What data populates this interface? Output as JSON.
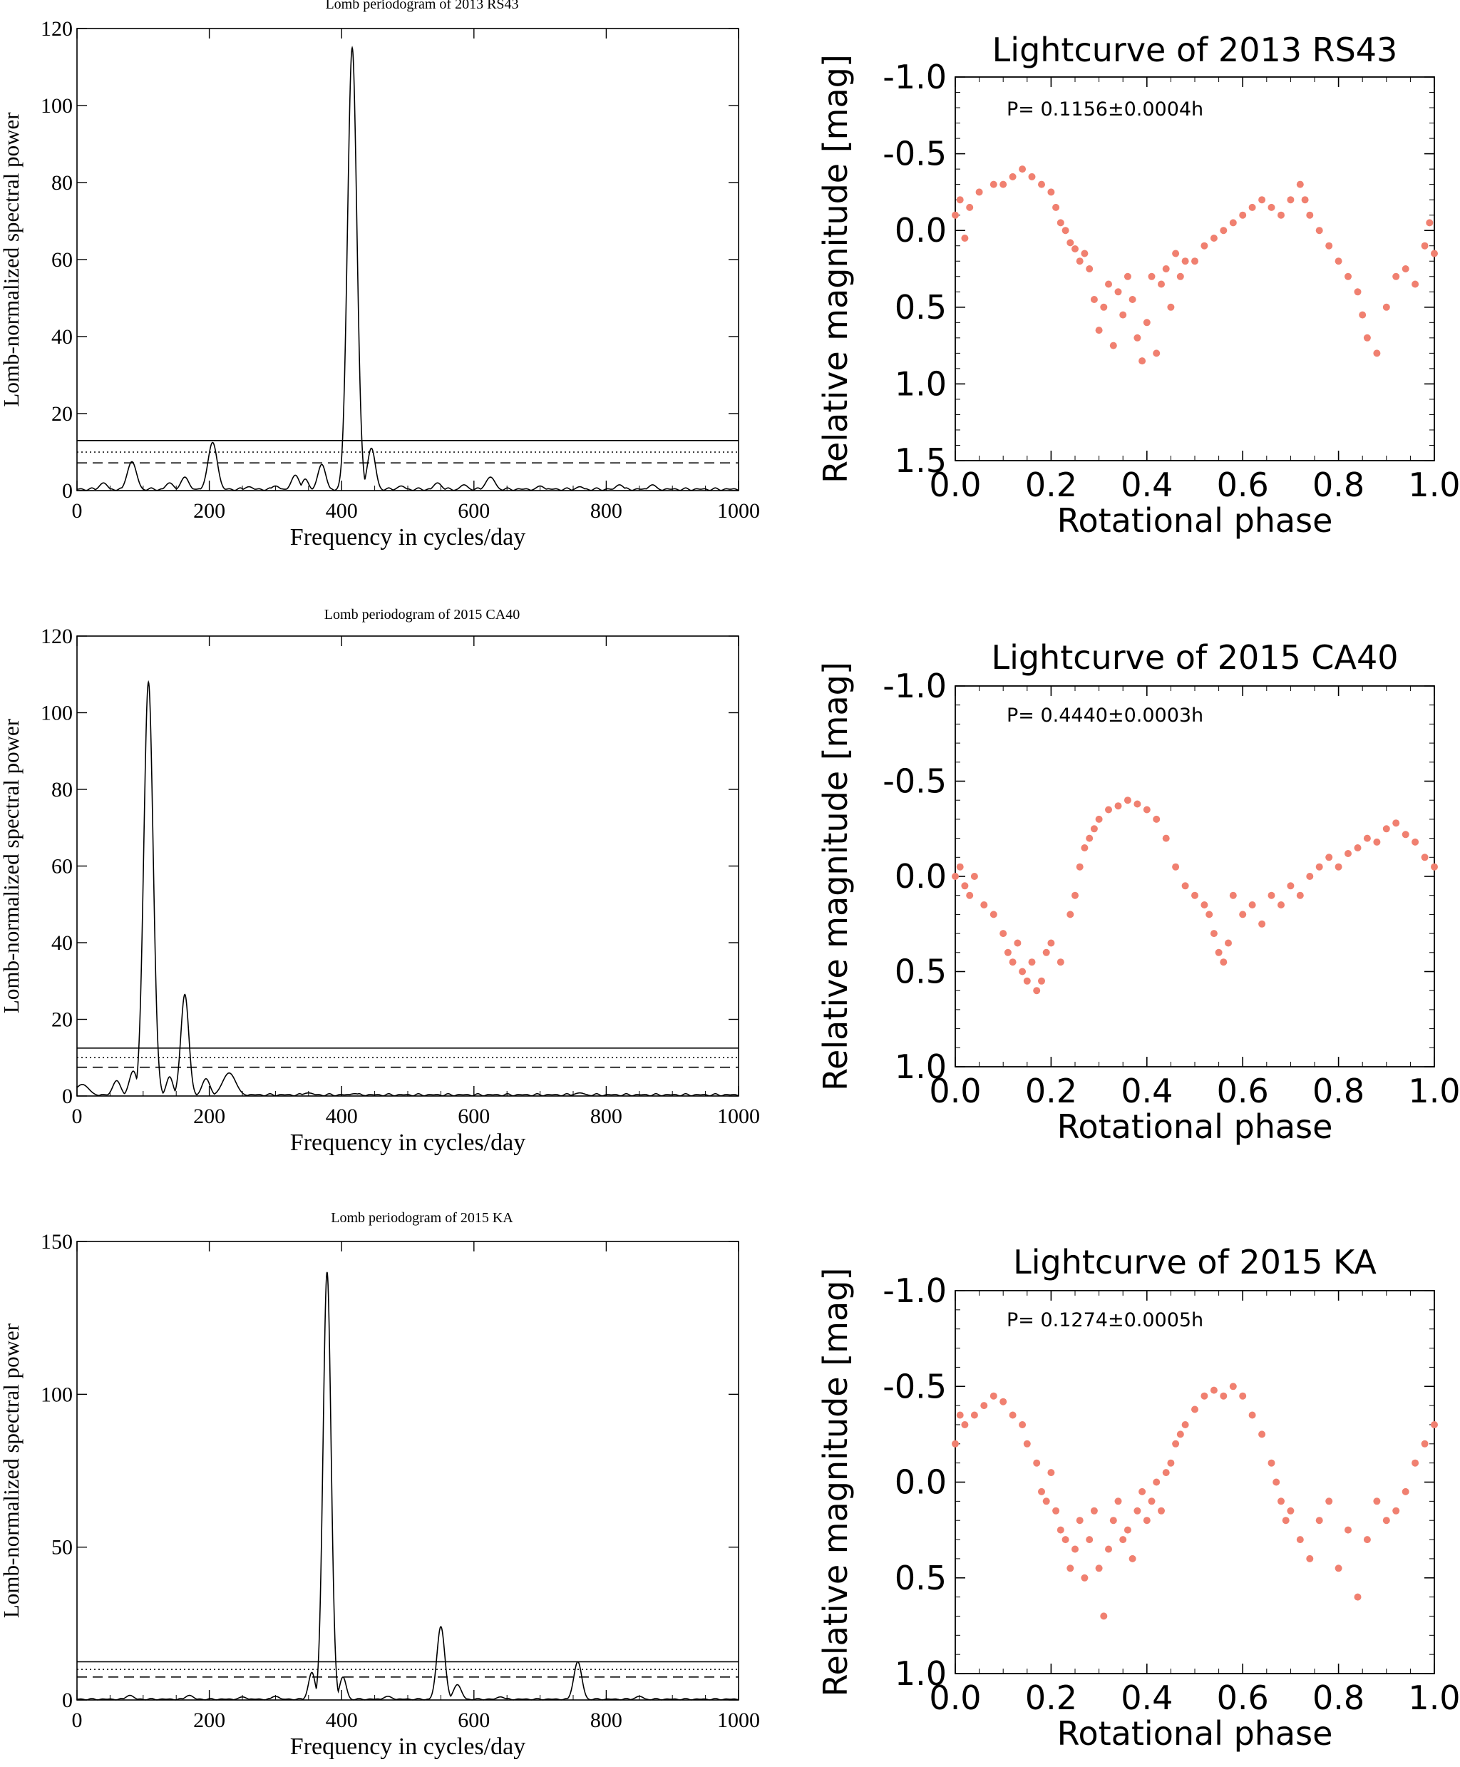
{
  "chart_data": [
    {
      "type": "line",
      "title": "Lomb periodogram of 2013 RS43",
      "xlabel": "Frequency in cycles/day",
      "ylabel": "Lomb-normalized spectral power",
      "xlim": [
        0,
        1000
      ],
      "ylim": [
        0,
        120
      ],
      "xticks": [
        "0",
        "200",
        "400",
        "600",
        "800",
        "1000"
      ],
      "yticks": [
        "0",
        "20",
        "40",
        "60",
        "80",
        "100",
        "120"
      ],
      "thresholds": [
        {
          "style": "solid",
          "value": 13.0
        },
        {
          "style": "dotted",
          "value": 10.0
        },
        {
          "style": "dashed",
          "value": 7.2
        }
      ],
      "baseline": 0.7,
      "peaks": [
        {
          "x": 40,
          "y": 2.0,
          "w": 6
        },
        {
          "x": 83,
          "y": 7.5,
          "w": 7
        },
        {
          "x": 140,
          "y": 2.0,
          "w": 6
        },
        {
          "x": 163,
          "y": 3.5,
          "w": 6
        },
        {
          "x": 205,
          "y": 12.5,
          "w": 7
        },
        {
          "x": 260,
          "y": 1.0,
          "w": 6
        },
        {
          "x": 300,
          "y": 1.2,
          "w": 6
        },
        {
          "x": 330,
          "y": 4.0,
          "w": 6
        },
        {
          "x": 345,
          "y": 3.0,
          "w": 5
        },
        {
          "x": 370,
          "y": 6.8,
          "w": 6
        },
        {
          "x": 416,
          "y": 115.0,
          "w": 7
        },
        {
          "x": 445,
          "y": 11.0,
          "w": 6
        },
        {
          "x": 490,
          "y": 1.2,
          "w": 6
        },
        {
          "x": 545,
          "y": 2.0,
          "w": 6
        },
        {
          "x": 585,
          "y": 1.5,
          "w": 6
        },
        {
          "x": 625,
          "y": 3.5,
          "w": 7
        },
        {
          "x": 700,
          "y": 1.2,
          "w": 6
        },
        {
          "x": 760,
          "y": 1.0,
          "w": 6
        },
        {
          "x": 820,
          "y": 1.5,
          "w": 6
        },
        {
          "x": 870,
          "y": 1.5,
          "w": 6
        }
      ]
    },
    {
      "type": "scatter",
      "title": "Lightcurve of 2013 RS43",
      "annotation": "P= 0.1156±0.0004h",
      "xlabel": "Rotational phase",
      "ylabel": "Relative magnitude [mag]",
      "xlim": [
        0.0,
        1.0
      ],
      "ylim": [
        -1.0,
        1.5
      ],
      "y_inverted": true,
      "xticks": [
        "0.0",
        "0.2",
        "0.4",
        "0.6",
        "0.8",
        "1.0"
      ],
      "yticks": [
        "-1.0",
        "-0.5",
        "0.0",
        "0.5",
        "1.0",
        "1.5"
      ],
      "marker_color": "#f08070",
      "points": [
        [
          0.0,
          -0.1
        ],
        [
          0.01,
          -0.2
        ],
        [
          0.02,
          0.05
        ],
        [
          0.03,
          -0.15
        ],
        [
          0.05,
          -0.25
        ],
        [
          0.08,
          -0.3
        ],
        [
          0.1,
          -0.3
        ],
        [
          0.12,
          -0.35
        ],
        [
          0.14,
          -0.4
        ],
        [
          0.16,
          -0.35
        ],
        [
          0.18,
          -0.3
        ],
        [
          0.2,
          -0.25
        ],
        [
          0.21,
          -0.15
        ],
        [
          0.22,
          -0.05
        ],
        [
          0.23,
          0.0
        ],
        [
          0.24,
          0.08
        ],
        [
          0.25,
          0.12
        ],
        [
          0.26,
          0.2
        ],
        [
          0.27,
          0.15
        ],
        [
          0.28,
          0.25
        ],
        [
          0.29,
          0.45
        ],
        [
          0.3,
          0.65
        ],
        [
          0.31,
          0.5
        ],
        [
          0.32,
          0.35
        ],
        [
          0.33,
          0.75
        ],
        [
          0.34,
          0.4
        ],
        [
          0.35,
          0.55
        ],
        [
          0.36,
          0.3
        ],
        [
          0.37,
          0.45
        ],
        [
          0.38,
          0.7
        ],
        [
          0.39,
          0.85
        ],
        [
          0.4,
          0.6
        ],
        [
          0.41,
          0.3
        ],
        [
          0.42,
          0.8
        ],
        [
          0.43,
          0.35
        ],
        [
          0.44,
          0.25
        ],
        [
          0.45,
          0.5
        ],
        [
          0.46,
          0.15
        ],
        [
          0.47,
          0.3
        ],
        [
          0.48,
          0.2
        ],
        [
          0.5,
          0.2
        ],
        [
          0.52,
          0.1
        ],
        [
          0.54,
          0.05
        ],
        [
          0.56,
          0.0
        ],
        [
          0.58,
          -0.05
        ],
        [
          0.6,
          -0.1
        ],
        [
          0.62,
          -0.15
        ],
        [
          0.64,
          -0.2
        ],
        [
          0.66,
          -0.15
        ],
        [
          0.68,
          -0.1
        ],
        [
          0.7,
          -0.2
        ],
        [
          0.72,
          -0.3
        ],
        [
          0.73,
          -0.2
        ],
        [
          0.74,
          -0.1
        ],
        [
          0.76,
          0.0
        ],
        [
          0.78,
          0.1
        ],
        [
          0.8,
          0.2
        ],
        [
          0.82,
          0.3
        ],
        [
          0.84,
          0.4
        ],
        [
          0.85,
          0.55
        ],
        [
          0.86,
          0.7
        ],
        [
          0.88,
          0.8
        ],
        [
          0.9,
          0.5
        ],
        [
          0.92,
          0.3
        ],
        [
          0.94,
          0.25
        ],
        [
          0.96,
          0.35
        ],
        [
          0.98,
          0.1
        ],
        [
          0.99,
          -0.05
        ],
        [
          1.0,
          0.15
        ]
      ]
    },
    {
      "type": "line",
      "title": "Lomb periodogram of 2015 CA40",
      "xlabel": "Frequency in cycles/day",
      "ylabel": "Lomb-normalized spectral power",
      "xlim": [
        0,
        1000
      ],
      "ylim": [
        0,
        120
      ],
      "xticks": [
        "0",
        "200",
        "400",
        "600",
        "800",
        "1000"
      ],
      "yticks": [
        "0",
        "20",
        "40",
        "60",
        "80",
        "100",
        "120"
      ],
      "thresholds": [
        {
          "style": "solid",
          "value": 12.5
        },
        {
          "style": "dotted",
          "value": 10.0
        },
        {
          "style": "dashed",
          "value": 7.5
        }
      ],
      "baseline": 0.6,
      "peaks": [
        {
          "x": 8,
          "y": 3.0,
          "w": 10
        },
        {
          "x": 60,
          "y": 4.0,
          "w": 6
        },
        {
          "x": 85,
          "y": 6.5,
          "w": 6
        },
        {
          "x": 108,
          "y": 108.0,
          "w": 7
        },
        {
          "x": 140,
          "y": 5.0,
          "w": 5
        },
        {
          "x": 163,
          "y": 26.5,
          "w": 6
        },
        {
          "x": 195,
          "y": 4.5,
          "w": 6
        },
        {
          "x": 230,
          "y": 6.0,
          "w": 10
        },
        {
          "x": 350,
          "y": 0.8,
          "w": 8
        },
        {
          "x": 420,
          "y": 0.6,
          "w": 8
        },
        {
          "x": 760,
          "y": 0.8,
          "w": 8
        }
      ]
    },
    {
      "type": "scatter",
      "title": "Lightcurve of 2015 CA40",
      "annotation": "P= 0.4440±0.0003h",
      "xlabel": "Rotational phase",
      "ylabel": "Relative magnitude [mag]",
      "xlim": [
        0.0,
        1.0
      ],
      "ylim": [
        -1.0,
        1.0
      ],
      "y_inverted": true,
      "xticks": [
        "0.0",
        "0.2",
        "0.4",
        "0.6",
        "0.8",
        "1.0"
      ],
      "yticks": [
        "-1.0",
        "-0.5",
        "0.0",
        "0.5",
        "1.0"
      ],
      "marker_color": "#f08070",
      "points": [
        [
          0.0,
          0.0
        ],
        [
          0.01,
          -0.05
        ],
        [
          0.02,
          0.05
        ],
        [
          0.03,
          0.1
        ],
        [
          0.04,
          0.0
        ],
        [
          0.06,
          0.15
        ],
        [
          0.08,
          0.2
        ],
        [
          0.1,
          0.3
        ],
        [
          0.11,
          0.4
        ],
        [
          0.12,
          0.45
        ],
        [
          0.13,
          0.35
        ],
        [
          0.14,
          0.5
        ],
        [
          0.15,
          0.55
        ],
        [
          0.16,
          0.45
        ],
        [
          0.17,
          0.6
        ],
        [
          0.18,
          0.55
        ],
        [
          0.19,
          0.4
        ],
        [
          0.2,
          0.35
        ],
        [
          0.22,
          0.45
        ],
        [
          0.24,
          0.2
        ],
        [
          0.25,
          0.1
        ],
        [
          0.26,
          -0.05
        ],
        [
          0.27,
          -0.15
        ],
        [
          0.28,
          -0.2
        ],
        [
          0.29,
          -0.25
        ],
        [
          0.3,
          -0.3
        ],
        [
          0.32,
          -0.35
        ],
        [
          0.34,
          -0.37
        ],
        [
          0.36,
          -0.4
        ],
        [
          0.38,
          -0.38
        ],
        [
          0.4,
          -0.35
        ],
        [
          0.42,
          -0.3
        ],
        [
          0.44,
          -0.2
        ],
        [
          0.46,
          -0.05
        ],
        [
          0.48,
          0.05
        ],
        [
          0.5,
          0.1
        ],
        [
          0.52,
          0.15
        ],
        [
          0.53,
          0.2
        ],
        [
          0.54,
          0.3
        ],
        [
          0.55,
          0.4
        ],
        [
          0.56,
          0.45
        ],
        [
          0.57,
          0.35
        ],
        [
          0.58,
          0.1
        ],
        [
          0.6,
          0.2
        ],
        [
          0.62,
          0.15
        ],
        [
          0.64,
          0.25
        ],
        [
          0.66,
          0.1
        ],
        [
          0.68,
          0.15
        ],
        [
          0.7,
          0.05
        ],
        [
          0.72,
          0.1
        ],
        [
          0.74,
          0.0
        ],
        [
          0.76,
          -0.05
        ],
        [
          0.78,
          -0.1
        ],
        [
          0.8,
          -0.05
        ],
        [
          0.82,
          -0.12
        ],
        [
          0.84,
          -0.15
        ],
        [
          0.86,
          -0.2
        ],
        [
          0.88,
          -0.18
        ],
        [
          0.9,
          -0.25
        ],
        [
          0.92,
          -0.28
        ],
        [
          0.94,
          -0.22
        ],
        [
          0.96,
          -0.18
        ],
        [
          0.98,
          -0.1
        ],
        [
          1.0,
          -0.05
        ]
      ]
    },
    {
      "type": "line",
      "title": "Lomb periodogram of 2015 KA",
      "xlabel": "Frequency in cycles/day",
      "ylabel": "Lomb-normalized spectral power",
      "xlim": [
        0,
        1000
      ],
      "ylim": [
        0,
        150
      ],
      "xticks": [
        "0",
        "200",
        "400",
        "600",
        "800",
        "1000"
      ],
      "yticks": [
        "0",
        "50",
        "100",
        "150"
      ],
      "thresholds": [
        {
          "style": "solid",
          "value": 12.5
        },
        {
          "style": "dotted",
          "value": 10.0
        },
        {
          "style": "dashed",
          "value": 7.5
        }
      ],
      "baseline": 0.5,
      "peaks": [
        {
          "x": 80,
          "y": 1.5,
          "w": 6
        },
        {
          "x": 170,
          "y": 1.5,
          "w": 6
        },
        {
          "x": 250,
          "y": 1.0,
          "w": 6
        },
        {
          "x": 300,
          "y": 1.2,
          "w": 6
        },
        {
          "x": 355,
          "y": 9.0,
          "w": 5
        },
        {
          "x": 378,
          "y": 140.0,
          "w": 6
        },
        {
          "x": 402,
          "y": 7.5,
          "w": 5
        },
        {
          "x": 470,
          "y": 1.2,
          "w": 6
        },
        {
          "x": 550,
          "y": 24.0,
          "w": 6
        },
        {
          "x": 575,
          "y": 5.0,
          "w": 6
        },
        {
          "x": 640,
          "y": 1.0,
          "w": 6
        },
        {
          "x": 757,
          "y": 12.5,
          "w": 6
        },
        {
          "x": 850,
          "y": 1.2,
          "w": 6
        }
      ]
    },
    {
      "type": "scatter",
      "title": "Lightcurve of 2015 KA",
      "annotation": "P= 0.1274±0.0005h",
      "xlabel": "Rotational phase",
      "ylabel": "Relative magnitude [mag]",
      "xlim": [
        0.0,
        1.0
      ],
      "ylim": [
        -1.0,
        1.0
      ],
      "y_inverted": true,
      "xticks": [
        "0.0",
        "0.2",
        "0.4",
        "0.6",
        "0.8",
        "1.0"
      ],
      "yticks": [
        "-1.0",
        "-0.5",
        "0.0",
        "0.5",
        "1.0"
      ],
      "marker_color": "#f08070",
      "points": [
        [
          0.0,
          -0.2
        ],
        [
          0.01,
          -0.35
        ],
        [
          0.02,
          -0.3
        ],
        [
          0.04,
          -0.35
        ],
        [
          0.06,
          -0.4
        ],
        [
          0.08,
          -0.45
        ],
        [
          0.1,
          -0.42
        ],
        [
          0.12,
          -0.35
        ],
        [
          0.14,
          -0.3
        ],
        [
          0.15,
          -0.2
        ],
        [
          0.17,
          -0.1
        ],
        [
          0.18,
          0.05
        ],
        [
          0.19,
          0.1
        ],
        [
          0.2,
          -0.05
        ],
        [
          0.21,
          0.15
        ],
        [
          0.22,
          0.25
        ],
        [
          0.23,
          0.3
        ],
        [
          0.24,
          0.45
        ],
        [
          0.25,
          0.35
        ],
        [
          0.26,
          0.2
        ],
        [
          0.27,
          0.5
        ],
        [
          0.28,
          0.3
        ],
        [
          0.29,
          0.15
        ],
        [
          0.3,
          0.45
        ],
        [
          0.31,
          0.7
        ],
        [
          0.32,
          0.35
        ],
        [
          0.33,
          0.2
        ],
        [
          0.34,
          0.1
        ],
        [
          0.35,
          0.3
        ],
        [
          0.36,
          0.25
        ],
        [
          0.37,
          0.4
        ],
        [
          0.38,
          0.15
        ],
        [
          0.39,
          0.05
        ],
        [
          0.4,
          0.2
        ],
        [
          0.41,
          0.1
        ],
        [
          0.42,
          0.0
        ],
        [
          0.43,
          0.15
        ],
        [
          0.44,
          -0.05
        ],
        [
          0.45,
          -0.1
        ],
        [
          0.46,
          -0.2
        ],
        [
          0.47,
          -0.25
        ],
        [
          0.48,
          -0.3
        ],
        [
          0.5,
          -0.38
        ],
        [
          0.52,
          -0.45
        ],
        [
          0.54,
          -0.48
        ],
        [
          0.56,
          -0.45
        ],
        [
          0.58,
          -0.5
        ],
        [
          0.6,
          -0.45
        ],
        [
          0.62,
          -0.35
        ],
        [
          0.64,
          -0.25
        ],
        [
          0.66,
          -0.1
        ],
        [
          0.67,
          0.0
        ],
        [
          0.68,
          0.1
        ],
        [
          0.69,
          0.2
        ],
        [
          0.7,
          0.15
        ],
        [
          0.72,
          0.3
        ],
        [
          0.74,
          0.4
        ],
        [
          0.76,
          0.2
        ],
        [
          0.78,
          0.1
        ],
        [
          0.8,
          0.45
        ],
        [
          0.82,
          0.25
        ],
        [
          0.84,
          0.6
        ],
        [
          0.86,
          0.3
        ],
        [
          0.88,
          0.1
        ],
        [
          0.9,
          0.2
        ],
        [
          0.92,
          0.15
        ],
        [
          0.94,
          0.05
        ],
        [
          0.96,
          -0.1
        ],
        [
          0.98,
          -0.2
        ],
        [
          1.0,
          -0.3
        ]
      ]
    }
  ]
}
